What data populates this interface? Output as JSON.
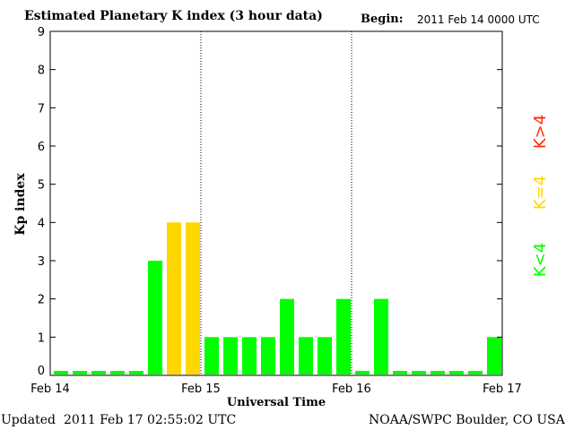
{
  "header": {
    "title": "Estimated Planetary K index (3 hour data)",
    "begin_label": "Begin:",
    "begin_value": "2011 Feb 14 0000 UTC"
  },
  "footer": {
    "updated_label": "Updated",
    "updated_value": "2011 Feb 17 02:55:02 UTC",
    "credit": "NOAA/SWPC Boulder, CO USA"
  },
  "colors": {
    "low": "#00ff00",
    "equal": "#ffd700",
    "high": "#ff2a00"
  },
  "chart_data": {
    "type": "bar",
    "title": "Estimated Planetary K index (3 hour data)",
    "xlabel": "Universal Time",
    "ylabel": "Kp index",
    "ylim": [
      0,
      9
    ],
    "yticks": [
      0,
      1,
      2,
      3,
      4,
      5,
      6,
      7,
      8,
      9
    ],
    "xticks": [
      "Feb 14",
      "Feb 15",
      "Feb 16",
      "Feb 17"
    ],
    "interval_hours": 3,
    "day_separators": [
      "Feb 15",
      "Feb 16"
    ],
    "grid": false,
    "values": [
      0,
      0,
      0,
      0,
      0,
      3,
      4,
      4,
      1,
      1,
      1,
      1,
      2,
      1,
      1,
      2,
      0,
      2,
      0,
      0,
      0,
      0,
      0,
      1
    ],
    "legend": [
      {
        "label": "K<4",
        "color": "#00ff00"
      },
      {
        "label": "K=4",
        "color": "#ffd700"
      },
      {
        "label": "K>4",
        "color": "#ff2a00"
      }
    ]
  }
}
